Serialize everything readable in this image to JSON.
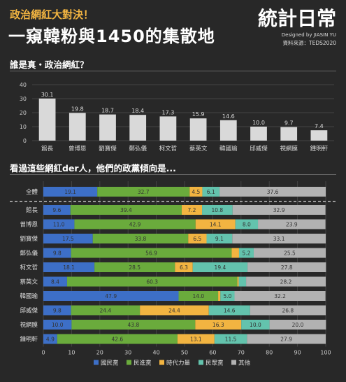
{
  "header": {
    "subtitle": "政治網紅大對決！",
    "title": "一窺韓粉與1450的集散地",
    "brand_logo": "統計日常",
    "brand_der": "der",
    "designed_by": "Designed by JIASIN YU",
    "source": "資料來源：TEDS2020"
  },
  "section1": {
    "title": "誰是真・政治網紅？"
  },
  "section2": {
    "title": "看過這些網紅der人，他們的政黨傾向是..."
  },
  "colors": {
    "kmt": "#3d6fc7",
    "dpp": "#6aab3c",
    "npp": "#f2b441",
    "tpp": "#63c3ad",
    "other": "#b2b2b2",
    "bar1": "#d9d9d9",
    "background": "#282828"
  },
  "chart_data": [
    {
      "type": "bar",
      "title": "誰是真・政治網紅？",
      "categories": [
        "館長",
        "曾博恩",
        "劉寶傑",
        "鄭弘儀",
        "柯文哲",
        "蔡英文",
        "韓國瑜",
        "邱威傑",
        "視網膜",
        "鍾明軒"
      ],
      "values": [
        30.1,
        19.8,
        18.7,
        18.4,
        17.3,
        15.9,
        14.6,
        10.0,
        9.7,
        7.4
      ],
      "value_labels": [
        "30.1",
        "19.8",
        "18.7",
        "18.4",
        "17.3",
        "15.9",
        "14.6",
        "10.0",
        "9.7",
        "7.4"
      ],
      "ylim": [
        0,
        40
      ],
      "yticks": [
        "0",
        "10",
        "20",
        "30",
        "40"
      ],
      "grid": true
    },
    {
      "type": "bar",
      "stacked": true,
      "orientation": "horizontal",
      "title": "看過這些網紅der人，他們的政黨傾向是...",
      "categories": [
        "全體",
        "館長",
        "曾博恩",
        "劉寶傑",
        "鄭弘儀",
        "柯文哲",
        "蔡英文",
        "韓國瑜",
        "邱威傑",
        "視網膜",
        "鍾明軒"
      ],
      "series": [
        {
          "name": "國民黨",
          "values": [
            19.1,
            9.6,
            11.0,
            17.5,
            9.8,
            18.1,
            8.4,
            47.9,
            9.8,
            10.0,
            4.9
          ],
          "labels": [
            "19.1",
            "9.6",
            "11.0",
            "17.5",
            "9.8",
            "18.1",
            "8.4",
            "47.9",
            "9.8",
            "10.0",
            "4.9"
          ]
        },
        {
          "name": "民進黨",
          "values": [
            32.7,
            39.4,
            42.9,
            33.8,
            56.9,
            28.5,
            60.3,
            14.0,
            24.4,
            43.8,
            42.6
          ],
          "labels": [
            "32.7",
            "39.4",
            "42.9",
            "33.8",
            "56.9",
            "28.5",
            "60.3",
            "14.0",
            "24.4",
            "43.8",
            "42.6"
          ]
        },
        {
          "name": "時代力量",
          "values": [
            4.5,
            7.2,
            14.1,
            6.5,
            2.6,
            6.3,
            0.5,
            0.8,
            24.4,
            16.3,
            13.1
          ],
          "labels": [
            "4.5",
            "7.2",
            "14.1",
            "6.5",
            "",
            "6.3",
            "",
            "",
            "24.4",
            "16.3",
            "13.1"
          ]
        },
        {
          "name": "民眾黨",
          "values": [
            6.1,
            10.8,
            8.0,
            9.1,
            5.2,
            19.4,
            2.6,
            5.0,
            14.6,
            10.0,
            11.5
          ],
          "labels": [
            "6.1",
            "10.8",
            "8.0",
            "9.1",
            "5.2",
            "19.4",
            "",
            "5.0",
            "14.6",
            "10.0",
            "11.5"
          ]
        },
        {
          "name": "其他",
          "values": [
            37.6,
            32.9,
            23.9,
            33.1,
            25.5,
            27.8,
            28.2,
            32.2,
            26.8,
            20.0,
            27.9
          ],
          "labels": [
            "37.6",
            "32.9",
            "23.9",
            "33.1",
            "25.5",
            "27.8",
            "28.2",
            "32.2",
            "26.8",
            "20.0",
            "27.9"
          ]
        }
      ],
      "xlim": [
        0,
        100
      ],
      "xticks": [
        "0",
        "10",
        "20",
        "30",
        "40",
        "50",
        "60",
        "70",
        "80",
        "90",
        "100"
      ],
      "grid": true,
      "legend": "bottom"
    }
  ]
}
